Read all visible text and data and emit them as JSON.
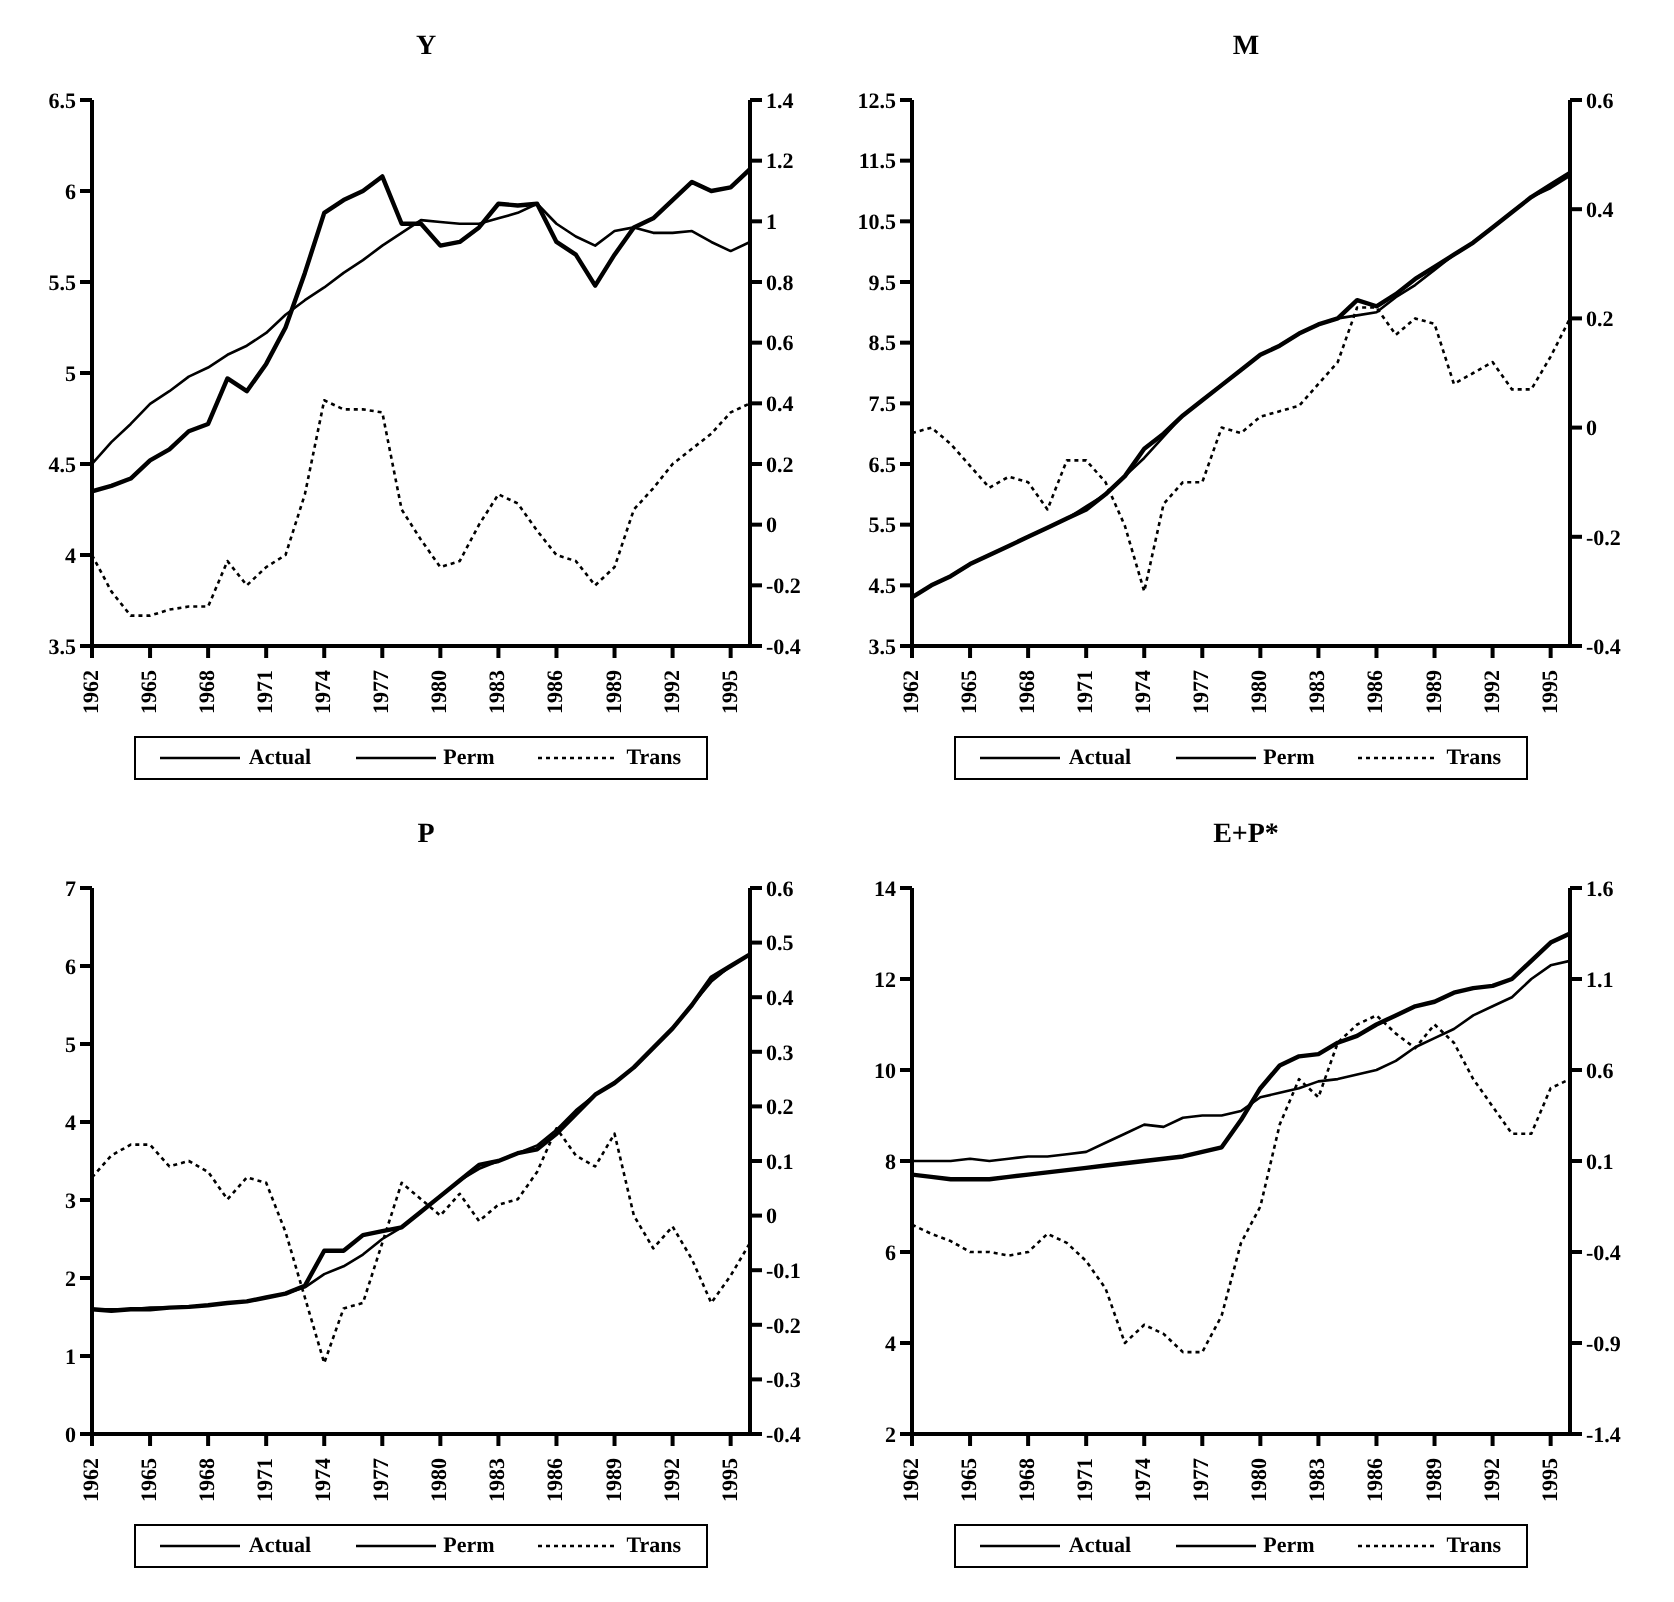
{
  "chart_data": [
    {
      "type": "line",
      "title": "Y",
      "x": [
        1962,
        1963,
        1964,
        1965,
        1966,
        1967,
        1968,
        1969,
        1970,
        1971,
        1972,
        1973,
        1974,
        1975,
        1976,
        1977,
        1978,
        1979,
        1980,
        1981,
        1982,
        1983,
        1984,
        1985,
        1986,
        1987,
        1988,
        1989,
        1990,
        1991,
        1992,
        1993,
        1994,
        1995,
        1996
      ],
      "xlim": [
        1962,
        1996
      ],
      "xticks": [
        1962,
        1965,
        1968,
        1971,
        1974,
        1977,
        1980,
        1983,
        1986,
        1989,
        1992,
        1995
      ],
      "ylim": [
        3.5,
        6.5
      ],
      "yticks": [
        3.5,
        4,
        4.5,
        5,
        5.5,
        6,
        6.5
      ],
      "y2lim": [
        -0.4,
        1.4
      ],
      "y2ticks": [
        -0.4,
        -0.2,
        0,
        0.2,
        0.4,
        0.6,
        0.8,
        1,
        1.2,
        1.4
      ],
      "legend": "bottom",
      "marker": "none",
      "grid": false,
      "series": [
        {
          "name": "Actual",
          "color": "#000000",
          "line_style": "solid",
          "values": [
            4.35,
            4.38,
            4.42,
            4.52,
            4.58,
            4.68,
            4.72,
            4.97,
            4.9,
            5.05,
            5.25,
            5.55,
            5.88,
            5.95,
            6.0,
            6.08,
            5.82,
            5.82,
            5.7,
            5.72,
            5.8,
            5.93,
            5.92,
            5.93,
            5.72,
            5.65,
            5.48,
            5.65,
            5.8,
            5.85,
            5.95,
            6.05,
            6.0,
            6.02,
            6.12
          ]
        },
        {
          "name": "Perm",
          "color": "#000000",
          "line_style": "solid",
          "values": [
            4.5,
            4.62,
            4.72,
            4.83,
            4.9,
            4.98,
            5.03,
            5.1,
            5.15,
            5.22,
            5.32,
            5.4,
            5.47,
            5.55,
            5.62,
            5.7,
            5.77,
            5.84,
            5.83,
            5.82,
            5.82,
            5.85,
            5.88,
            5.93,
            5.82,
            5.75,
            5.7,
            5.78,
            5.8,
            5.77,
            5.77,
            5.78,
            5.72,
            5.67,
            5.72
          ]
        },
        {
          "name": "Trans",
          "color": "#000000",
          "line_style": "dotted",
          "axis": "y2",
          "values": [
            -0.1,
            -0.22,
            -0.3,
            -0.3,
            -0.28,
            -0.27,
            -0.27,
            -0.12,
            -0.2,
            -0.14,
            -0.1,
            0.1,
            0.41,
            0.38,
            0.38,
            0.37,
            0.05,
            -0.05,
            -0.14,
            -0.12,
            0.0,
            0.1,
            0.07,
            -0.02,
            -0.1,
            -0.12,
            -0.2,
            -0.14,
            0.05,
            0.12,
            0.2,
            0.25,
            0.3,
            0.37,
            0.4
          ]
        }
      ]
    },
    {
      "type": "line",
      "title": "M",
      "x": [
        1962,
        1963,
        1964,
        1965,
        1966,
        1967,
        1968,
        1969,
        1970,
        1971,
        1972,
        1973,
        1974,
        1975,
        1976,
        1977,
        1978,
        1979,
        1980,
        1981,
        1982,
        1983,
        1984,
        1985,
        1986,
        1987,
        1988,
        1989,
        1990,
        1991,
        1992,
        1993,
        1994,
        1995,
        1996
      ],
      "xlim": [
        1962,
        1996
      ],
      "xticks": [
        1962,
        1965,
        1968,
        1971,
        1974,
        1977,
        1980,
        1983,
        1986,
        1989,
        1992,
        1995
      ],
      "ylim": [
        3.5,
        12.5
      ],
      "yticks": [
        3.5,
        4.5,
        5.5,
        6.5,
        7.5,
        8.5,
        9.5,
        10.5,
        11.5,
        12.5
      ],
      "y2lim": [
        -0.4,
        0.6
      ],
      "y2ticks": [
        -0.4,
        -0.2,
        0,
        0.2,
        0.4,
        0.6
      ],
      "legend": "bottom",
      "marker": "none",
      "grid": false,
      "series": [
        {
          "name": "Actual",
          "color": "#000000",
          "line_style": "solid",
          "values": [
            4.3,
            4.5,
            4.65,
            4.85,
            5.0,
            5.15,
            5.3,
            5.45,
            5.6,
            5.75,
            6.0,
            6.3,
            6.75,
            7.0,
            7.3,
            7.55,
            7.8,
            8.05,
            8.3,
            8.45,
            8.65,
            8.8,
            8.9,
            9.2,
            9.1,
            9.3,
            9.55,
            9.75,
            9.95,
            10.15,
            10.4,
            10.65,
            10.9,
            11.1,
            11.3
          ]
        },
        {
          "name": "Perm",
          "color": "#000000",
          "line_style": "solid",
          "values": [
            4.3,
            4.5,
            4.65,
            4.85,
            5.0,
            5.15,
            5.3,
            5.45,
            5.6,
            5.8,
            6.0,
            6.3,
            6.6,
            6.95,
            7.3,
            7.55,
            7.8,
            8.05,
            8.3,
            8.45,
            8.65,
            8.8,
            8.9,
            8.95,
            9.0,
            9.25,
            9.45,
            9.7,
            9.95,
            10.15,
            10.4,
            10.65,
            10.9,
            11.05,
            11.25
          ]
        },
        {
          "name": "Trans",
          "color": "#000000",
          "line_style": "dotted",
          "axis": "y2",
          "values": [
            -0.01,
            0.0,
            -0.03,
            -0.07,
            -0.11,
            -0.09,
            -0.1,
            -0.15,
            -0.06,
            -0.06,
            -0.1,
            -0.18,
            -0.3,
            -0.14,
            -0.1,
            -0.1,
            0.0,
            -0.01,
            0.02,
            0.03,
            0.04,
            0.08,
            0.12,
            0.22,
            0.22,
            0.17,
            0.2,
            0.19,
            0.08,
            0.1,
            0.12,
            0.07,
            0.07,
            0.13,
            0.2
          ]
        }
      ]
    },
    {
      "type": "line",
      "title": "P",
      "x": [
        1962,
        1963,
        1964,
        1965,
        1966,
        1967,
        1968,
        1969,
        1970,
        1971,
        1972,
        1973,
        1974,
        1975,
        1976,
        1977,
        1978,
        1979,
        1980,
        1981,
        1982,
        1983,
        1984,
        1985,
        1986,
        1987,
        1988,
        1989,
        1990,
        1991,
        1992,
        1993,
        1994,
        1995,
        1996
      ],
      "xlim": [
        1962,
        1996
      ],
      "xticks": [
        1962,
        1965,
        1968,
        1971,
        1974,
        1977,
        1980,
        1983,
        1986,
        1989,
        1992,
        1995
      ],
      "ylim": [
        0,
        7
      ],
      "yticks": [
        0,
        1,
        2,
        3,
        4,
        5,
        6,
        7
      ],
      "y2lim": [
        -0.4,
        0.6
      ],
      "y2ticks": [
        -0.4,
        -0.3,
        -0.2,
        -0.1,
        0,
        0.1,
        0.2,
        0.3,
        0.4,
        0.5,
        0.6
      ],
      "legend": "bottom",
      "marker": "none",
      "grid": false,
      "series": [
        {
          "name": "Actual",
          "color": "#000000",
          "line_style": "solid",
          "values": [
            1.6,
            1.58,
            1.6,
            1.6,
            1.62,
            1.63,
            1.65,
            1.68,
            1.7,
            1.75,
            1.8,
            1.9,
            2.35,
            2.35,
            2.55,
            2.6,
            2.65,
            2.85,
            3.05,
            3.25,
            3.45,
            3.5,
            3.6,
            3.65,
            3.85,
            4.1,
            4.35,
            4.5,
            4.7,
            4.95,
            5.2,
            5.5,
            5.85,
            6.0,
            6.15
          ]
        },
        {
          "name": "Perm",
          "color": "#000000",
          "line_style": "solid",
          "values": [
            1.6,
            1.6,
            1.6,
            1.62,
            1.62,
            1.63,
            1.65,
            1.68,
            1.7,
            1.75,
            1.8,
            1.88,
            2.05,
            2.15,
            2.3,
            2.5,
            2.65,
            2.85,
            3.05,
            3.25,
            3.4,
            3.5,
            3.6,
            3.7,
            3.9,
            4.15,
            4.35,
            4.5,
            4.7,
            4.95,
            5.2,
            5.5,
            5.8,
            6.0,
            6.15
          ]
        },
        {
          "name": "Trans",
          "color": "#000000",
          "line_style": "dotted",
          "axis": "y2",
          "values": [
            0.07,
            0.11,
            0.13,
            0.13,
            0.09,
            0.1,
            0.08,
            0.03,
            0.07,
            0.06,
            -0.03,
            -0.15,
            -0.27,
            -0.17,
            -0.16,
            -0.05,
            0.06,
            0.03,
            0.0,
            0.04,
            -0.01,
            0.02,
            0.03,
            0.08,
            0.16,
            0.11,
            0.09,
            0.15,
            0.0,
            -0.06,
            -0.02,
            -0.08,
            -0.16,
            -0.11,
            -0.05
          ]
        }
      ]
    },
    {
      "type": "line",
      "title": "E+P*",
      "x": [
        1962,
        1963,
        1964,
        1965,
        1966,
        1967,
        1968,
        1969,
        1970,
        1971,
        1972,
        1973,
        1974,
        1975,
        1976,
        1977,
        1978,
        1979,
        1980,
        1981,
        1982,
        1983,
        1984,
        1985,
        1986,
        1987,
        1988,
        1989,
        1990,
        1991,
        1992,
        1993,
        1994,
        1995,
        1996
      ],
      "xlim": [
        1962,
        1996
      ],
      "xticks": [
        1962,
        1965,
        1968,
        1971,
        1974,
        1977,
        1980,
        1983,
        1986,
        1989,
        1992,
        1995
      ],
      "ylim": [
        2,
        14
      ],
      "yticks": [
        2,
        4,
        6,
        8,
        10,
        12,
        14
      ],
      "y2lim": [
        -1.4,
        1.6
      ],
      "y2ticks": [
        -1.4,
        -0.9,
        -0.4,
        0.1,
        0.6,
        1.1,
        1.6
      ],
      "legend": "bottom",
      "marker": "none",
      "grid": false,
      "series": [
        {
          "name": "Actual",
          "color": "#000000",
          "line_style": "solid",
          "values": [
            7.7,
            7.65,
            7.6,
            7.6,
            7.6,
            7.65,
            7.7,
            7.75,
            7.8,
            7.85,
            7.9,
            7.95,
            8.0,
            8.05,
            8.1,
            8.2,
            8.3,
            8.9,
            9.6,
            10.1,
            10.3,
            10.35,
            10.6,
            10.75,
            11.0,
            11.2,
            11.4,
            11.5,
            11.7,
            11.8,
            11.85,
            12.0,
            12.4,
            12.8,
            13.0
          ]
        },
        {
          "name": "Perm",
          "color": "#000000",
          "line_style": "solid",
          "values": [
            8.0,
            8.0,
            8.0,
            8.05,
            8.0,
            8.05,
            8.1,
            8.1,
            8.15,
            8.2,
            8.4,
            8.6,
            8.8,
            8.75,
            8.95,
            9.0,
            9.0,
            9.1,
            9.4,
            9.5,
            9.6,
            9.75,
            9.8,
            9.9,
            10.0,
            10.2,
            10.5,
            10.7,
            10.9,
            11.2,
            11.4,
            11.6,
            12.0,
            12.3,
            12.4
          ]
        },
        {
          "name": "Trans",
          "color": "#000000",
          "line_style": "dotted",
          "axis": "y2",
          "values": [
            -0.25,
            -0.3,
            -0.34,
            -0.4,
            -0.4,
            -0.42,
            -0.4,
            -0.3,
            -0.35,
            -0.45,
            -0.6,
            -0.9,
            -0.8,
            -0.85,
            -0.95,
            -0.95,
            -0.75,
            -0.35,
            -0.15,
            0.3,
            0.55,
            0.45,
            0.75,
            0.85,
            0.9,
            0.8,
            0.72,
            0.85,
            0.75,
            0.55,
            0.4,
            0.25,
            0.25,
            0.5,
            0.55
          ]
        }
      ]
    }
  ]
}
